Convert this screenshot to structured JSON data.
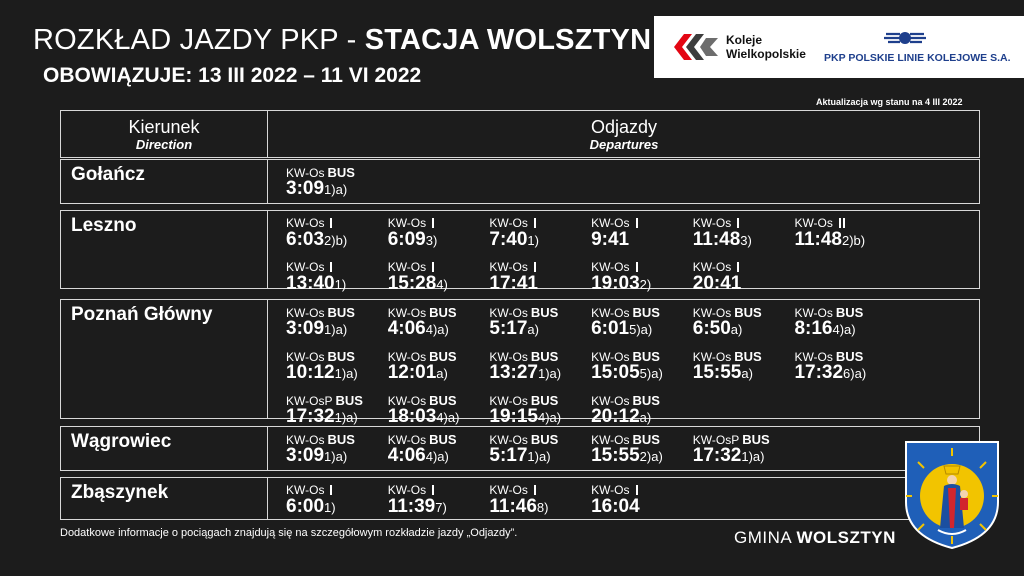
{
  "header": {
    "title_prefix": "ROZKŁAD JAZDY PKP - ",
    "title_bold": "STACJA WOLSZTYN",
    "validity": "OBOWIĄZUJE: 13 III 2022 – 11 VI 2022",
    "update_note": "Aktualizacja wg stanu na 4 III 2022"
  },
  "logos": {
    "kw_line1": "Koleje",
    "kw_line2": "Wielkopolskie",
    "plk": "PKP POLSKIE LINIE KOLEJOWE S.A.",
    "kw_colors": [
      "#e30613",
      "#3d3d3d"
    ],
    "plk_color": "#1e3f8c"
  },
  "table_header": {
    "direction_pl": "Kierunek",
    "direction_en": "Direction",
    "departures_pl": "Odjazdy",
    "departures_en": "Departures"
  },
  "rows": [
    {
      "destination": "Gołańcz",
      "departures": [
        {
          "train": "KW-Os",
          "suffix": "BUS",
          "time": "3:09",
          "note": "1)a)"
        }
      ]
    },
    {
      "destination": "Leszno",
      "departures": [
        {
          "train": "KW-Os",
          "suffix": "I",
          "time": "6:03",
          "note": "2)b)"
        },
        {
          "train": "KW-Os",
          "suffix": "I",
          "time": "6:09",
          "note": "3)"
        },
        {
          "train": "KW-Os",
          "suffix": "I",
          "time": "7:40",
          "note": "1)"
        },
        {
          "train": "KW-Os",
          "suffix": "I",
          "time": "9:41",
          "note": ""
        },
        {
          "train": "KW-Os",
          "suffix": "I",
          "time": "11:48",
          "note": "3)"
        },
        {
          "train": "KW-Os",
          "suffix": "II",
          "time": "11:48",
          "note": "2)b)"
        },
        {
          "train": "KW-Os",
          "suffix": "I",
          "time": "13:40",
          "note": "1)"
        },
        {
          "train": "KW-Os",
          "suffix": "I",
          "time": "15:28",
          "note": "4)"
        },
        {
          "train": "KW-Os",
          "suffix": "I",
          "time": "17:41",
          "note": ""
        },
        {
          "train": "KW-Os",
          "suffix": "I",
          "time": "19:03",
          "note": "2)"
        },
        {
          "train": "KW-Os",
          "suffix": "I",
          "time": "20:41",
          "note": ""
        }
      ]
    },
    {
      "destination": "Poznań Główny",
      "departures": [
        {
          "train": "KW-Os",
          "suffix": "BUS",
          "time": "3:09",
          "note": "1)a)"
        },
        {
          "train": "KW-Os",
          "suffix": "BUS",
          "time": "4:06",
          "note": "4)a)"
        },
        {
          "train": "KW-Os",
          "suffix": "BUS",
          "time": "5:17",
          "note": "a)"
        },
        {
          "train": "KW-Os",
          "suffix": "BUS",
          "time": "6:01",
          "note": "5)a)"
        },
        {
          "train": "KW-Os",
          "suffix": "BUS",
          "time": "6:50",
          "note": "a)"
        },
        {
          "train": "KW-Os",
          "suffix": "BUS",
          "time": "8:16",
          "note": "4)a)"
        },
        {
          "train": "KW-Os",
          "suffix": "BUS",
          "time": "10:12",
          "note": "1)a)"
        },
        {
          "train": "KW-Os",
          "suffix": "BUS",
          "time": "12:01",
          "note": "a)"
        },
        {
          "train": "KW-Os",
          "suffix": "BUS",
          "time": "13:27",
          "note": "1)a)"
        },
        {
          "train": "KW-Os",
          "suffix": "BUS",
          "time": "15:05",
          "note": "5)a)"
        },
        {
          "train": "KW-Os",
          "suffix": "BUS",
          "time": "15:55",
          "note": "a)"
        },
        {
          "train": "KW-Os",
          "suffix": "BUS",
          "time": "17:32",
          "note": "6)a)"
        },
        {
          "train": "KW-OsP",
          "suffix": "BUS",
          "time": "17:32",
          "note": "1)a)"
        },
        {
          "train": "KW-Os",
          "suffix": "BUS",
          "time": "18:03",
          "note": "4)a)"
        },
        {
          "train": "KW-Os",
          "suffix": "BUS",
          "time": "19:15",
          "note": "4)a)"
        },
        {
          "train": "KW-Os",
          "suffix": "BUS",
          "time": "20:12",
          "note": "a)"
        }
      ]
    },
    {
      "destination": "Wągrowiec",
      "departures": [
        {
          "train": "KW-Os",
          "suffix": "BUS",
          "time": "3:09",
          "note": "1)a)"
        },
        {
          "train": "KW-Os",
          "suffix": "BUS",
          "time": "4:06",
          "note": "4)a)"
        },
        {
          "train": "KW-Os",
          "suffix": "BUS",
          "time": "5:17",
          "note": "1)a)"
        },
        {
          "train": "KW-Os",
          "suffix": "BUS",
          "time": "15:55",
          "note": "2)a)"
        },
        {
          "train": "KW-OsP",
          "suffix": "BUS",
          "time": "17:32",
          "note": "1)a)"
        }
      ]
    },
    {
      "destination": "Zbąszynek",
      "departures": [
        {
          "train": "KW-Os",
          "suffix": "I",
          "time": "6:00",
          "note": "1)"
        },
        {
          "train": "KW-Os",
          "suffix": "I",
          "time": "11:39",
          "note": "7)"
        },
        {
          "train": "KW-Os",
          "suffix": "I",
          "time": "11:46",
          "note": "8)"
        },
        {
          "train": "KW-Os",
          "suffix": "I",
          "time": "16:04",
          "note": ""
        }
      ]
    }
  ],
  "footer": {
    "note": "Dodatkowe informacje o pociągach znajdują się na szczegółowym rozkładzie jazdy „Odjazdy”.",
    "gmina_prefix": "GMINA ",
    "gmina_bold": "WOLSZTYN"
  },
  "icons": {
    "kw_logo": "koleje-wielkopolskie-logo",
    "plk_logo": "pkp-plk-logo",
    "coat": "wolsztyn-coat-of-arms-icon"
  }
}
